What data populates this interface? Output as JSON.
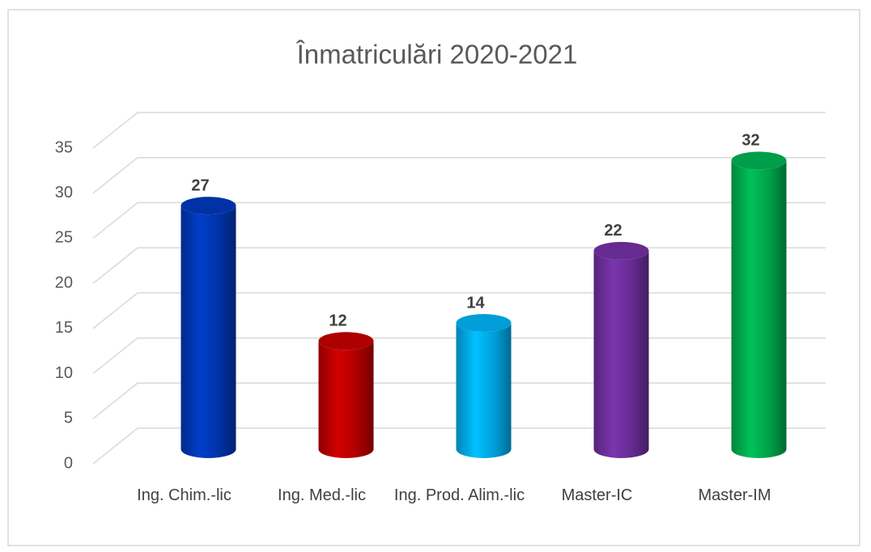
{
  "chart_data": {
    "type": "bar",
    "style": "3d-cylinder",
    "title": "Înmatriculări 2020-2021",
    "categories": [
      "Ing. Chim.-lic",
      "Ing. Med.-lic",
      "Ing. Prod. Alim.-lic",
      "Master-IC",
      "Master-IM"
    ],
    "values": [
      27,
      12,
      14,
      22,
      32
    ],
    "colors": [
      "#0038b8",
      "#c00000",
      "#00b0f0",
      "#7030a0",
      "#00b050"
    ],
    "ylim": [
      0,
      35
    ],
    "yticks": [
      0,
      5,
      10,
      15,
      20,
      25,
      30,
      35
    ],
    "grid": true,
    "data_labels": true
  }
}
